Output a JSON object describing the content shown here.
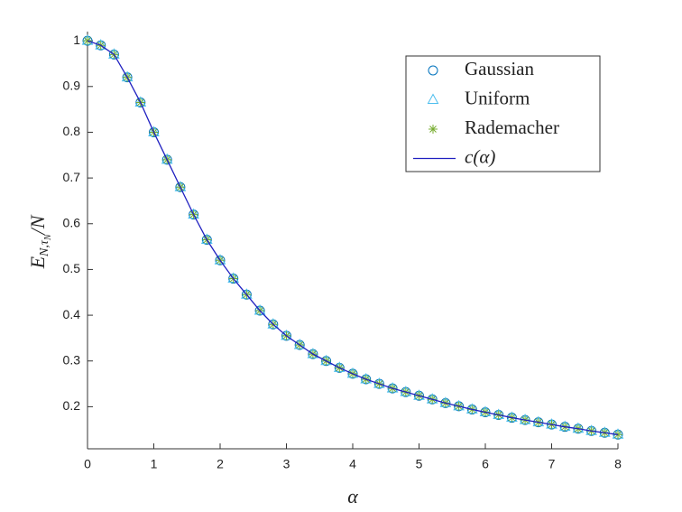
{
  "chart_data": {
    "type": "line",
    "xlabel": "α",
    "ylabel": [
      "E",
      "N,τ",
      "N",
      "/N"
    ],
    "x": [
      0,
      0.2,
      0.4,
      0.6,
      0.8,
      1,
      1.2,
      1.4,
      1.6,
      1.8,
      2,
      2.2,
      2.4,
      2.6,
      2.8,
      3,
      3.2,
      3.4,
      3.6,
      3.8,
      4,
      4.2,
      4.4,
      4.6,
      4.8,
      5,
      5.2,
      5.4,
      5.6,
      5.8,
      6,
      6.2,
      6.4,
      6.6,
      6.8,
      7,
      7.2,
      7.4,
      7.6,
      7.8,
      8
    ],
    "xlim": [
      0,
      8
    ],
    "xticks": [
      0,
      1,
      2,
      3,
      4,
      5,
      6,
      7,
      8
    ],
    "ylim": [
      0.108,
      1.02
    ],
    "yticks": [
      0.2,
      0.3,
      0.4,
      0.5,
      0.6,
      0.7,
      0.8,
      0.9,
      1
    ],
    "legend": "upper right",
    "series": [
      {
        "name": "Gaussian",
        "color": "#0072bd",
        "marker": "o",
        "values": [
          1,
          0.99,
          0.97,
          0.92,
          0.865,
          0.8,
          0.74,
          0.68,
          0.62,
          0.565,
          0.52,
          0.48,
          0.445,
          0.41,
          0.38,
          0.355,
          0.335,
          0.315,
          0.3,
          0.285,
          0.272,
          0.26,
          0.25,
          0.24,
          0.232,
          0.224,
          0.216,
          0.208,
          0.201,
          0.194,
          0.188,
          0.182,
          0.176,
          0.171,
          0.166,
          0.161,
          0.156,
          0.152,
          0.147,
          0.143,
          0.139
        ]
      },
      {
        "name": "Uniform",
        "color": "#4dbeee",
        "marker": "^",
        "values": [
          1,
          0.99,
          0.97,
          0.92,
          0.865,
          0.8,
          0.74,
          0.68,
          0.62,
          0.565,
          0.52,
          0.48,
          0.445,
          0.41,
          0.38,
          0.355,
          0.335,
          0.315,
          0.3,
          0.285,
          0.272,
          0.26,
          0.25,
          0.24,
          0.232,
          0.224,
          0.216,
          0.208,
          0.201,
          0.194,
          0.188,
          0.182,
          0.176,
          0.171,
          0.166,
          0.161,
          0.156,
          0.152,
          0.147,
          0.143,
          0.139
        ]
      },
      {
        "name": "Rademacher",
        "color": "#77ac30",
        "marker": "*",
        "values": [
          1,
          0.99,
          0.97,
          0.92,
          0.865,
          0.8,
          0.74,
          0.68,
          0.62,
          0.565,
          0.52,
          0.48,
          0.445,
          0.41,
          0.38,
          0.355,
          0.335,
          0.315,
          0.3,
          0.285,
          0.272,
          0.26,
          0.25,
          0.24,
          0.232,
          0.224,
          0.216,
          0.208,
          0.201,
          0.194,
          0.188,
          0.182,
          0.176,
          0.171,
          0.166,
          0.161,
          0.156,
          0.152,
          0.147,
          0.143,
          0.139
        ]
      },
      {
        "name": "c(α)",
        "color": "#2020c0",
        "marker": "line",
        "values": [
          1,
          0.99,
          0.97,
          0.92,
          0.865,
          0.8,
          0.74,
          0.68,
          0.62,
          0.565,
          0.52,
          0.48,
          0.445,
          0.41,
          0.38,
          0.355,
          0.335,
          0.315,
          0.3,
          0.285,
          0.272,
          0.26,
          0.25,
          0.24,
          0.232,
          0.224,
          0.216,
          0.208,
          0.201,
          0.194,
          0.188,
          0.182,
          0.176,
          0.171,
          0.166,
          0.161,
          0.156,
          0.152,
          0.147,
          0.143,
          0.139
        ]
      }
    ]
  }
}
